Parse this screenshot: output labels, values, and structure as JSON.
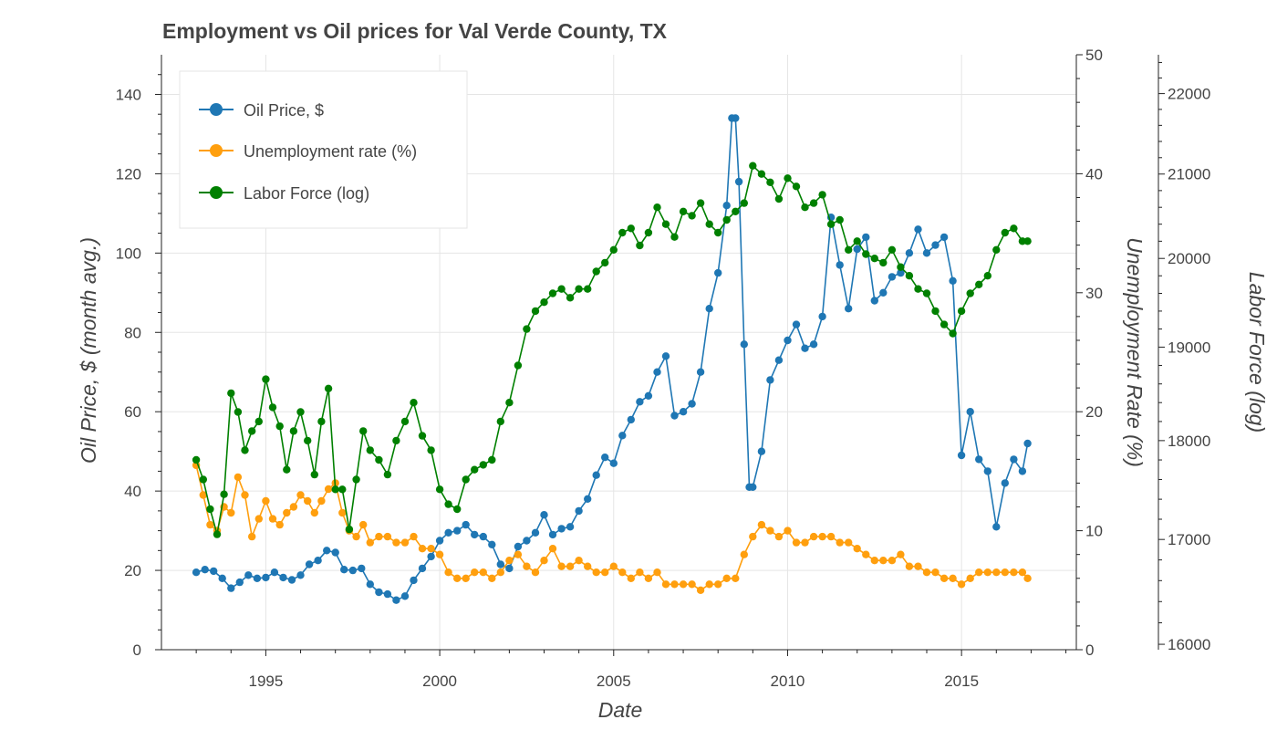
{
  "chart_data": {
    "type": "line",
    "title": "Employment vs Oil prices for Val Verde County, TX",
    "xlabel": "Date",
    "x_ticks": [
      "1995",
      "2000",
      "2005",
      "2010",
      "2015"
    ],
    "xlim": [
      1992.0,
      2018.3
    ],
    "axes": {
      "left": {
        "label": "Oil Price, $ (month avg.)",
        "range": [
          0,
          150
        ],
        "ticks": [
          "0",
          "20",
          "40",
          "60",
          "80",
          "100",
          "120",
          "140"
        ],
        "tick_values": [
          0,
          20,
          40,
          60,
          80,
          100,
          120,
          140
        ]
      },
      "right1": {
        "label": "Unemployment Rate (%)",
        "range": [
          0,
          50
        ],
        "ticks": [
          "0",
          "10",
          "20",
          "30",
          "40",
          "50"
        ],
        "tick_values": [
          0,
          10,
          20,
          30,
          40,
          50
        ]
      },
      "right2": {
        "label": "Labor Force (log)",
        "scale": "log",
        "range": [
          15950,
          22500
        ],
        "ticks": [
          "16000",
          "17000",
          "18000",
          "19000",
          "20000",
          "21000",
          "22000"
        ],
        "tick_values": [
          16000,
          17000,
          18000,
          19000,
          20000,
          21000,
          22000
        ]
      }
    },
    "grid": true,
    "legend_position": "top-left",
    "series": [
      {
        "name": "Oil Price, $",
        "color": "#1f77b4",
        "axis": "left",
        "x": [
          1993.0,
          1993.25,
          1993.5,
          1993.75,
          1994.0,
          1994.25,
          1994.5,
          1994.75,
          1995.0,
          1995.25,
          1995.5,
          1995.75,
          1996.0,
          1996.25,
          1996.5,
          1996.75,
          1997.0,
          1997.25,
          1997.5,
          1997.75,
          1998.0,
          1998.25,
          1998.5,
          1998.75,
          1999.0,
          1999.25,
          1999.5,
          1999.75,
          2000.0,
          2000.25,
          2000.5,
          2000.75,
          2001.0,
          2001.25,
          2001.5,
          2001.75,
          2002.0,
          2002.25,
          2002.5,
          2002.75,
          2003.0,
          2003.25,
          2003.5,
          2003.75,
          2004.0,
          2004.25,
          2004.5,
          2004.75,
          2005.0,
          2005.25,
          2005.5,
          2005.75,
          2006.0,
          2006.25,
          2006.5,
          2006.75,
          2007.0,
          2007.25,
          2007.5,
          2007.75,
          2008.0,
          2008.25,
          2008.4,
          2008.5,
          2008.6,
          2008.75,
          2008.9,
          2009.0,
          2009.25,
          2009.5,
          2009.75,
          2010.0,
          2010.25,
          2010.5,
          2010.75,
          2011.0,
          2011.25,
          2011.5,
          2011.75,
          2012.0,
          2012.25,
          2012.5,
          2012.75,
          2013.0,
          2013.25,
          2013.5,
          2013.75,
          2014.0,
          2014.25,
          2014.5,
          2014.75,
          2015.0,
          2015.25,
          2015.5,
          2015.75,
          2016.0,
          2016.25,
          2016.5,
          2016.75,
          2016.9
        ],
        "values": [
          19.5,
          20.2,
          19.8,
          18.0,
          15.5,
          17.0,
          18.8,
          18.0,
          18.2,
          19.5,
          18.2,
          17.6,
          18.8,
          21.5,
          22.5,
          25.0,
          24.5,
          20.2,
          20.0,
          20.5,
          16.5,
          14.5,
          14.0,
          12.5,
          13.5,
          17.5,
          20.5,
          23.5,
          27.5,
          29.5,
          30.0,
          31.5,
          29.0,
          28.5,
          26.5,
          21.5,
          20.5,
          26.0,
          27.5,
          29.5,
          34.0,
          29.0,
          30.5,
          31.0,
          35.0,
          38.0,
          44.0,
          48.5,
          47.0,
          54.0,
          58.0,
          62.5,
          64.0,
          70.0,
          74.0,
          59.0,
          60.0,
          62.0,
          70.0,
          86.0,
          95.0,
          112.0,
          134.0,
          134.0,
          118.0,
          77.0,
          41.0,
          41.0,
          50.0,
          68.0,
          73.0,
          78.0,
          82.0,
          76.0,
          77.0,
          84.0,
          109.0,
          97.0,
          86.0,
          101.0,
          104.0,
          88.0,
          90.0,
          94.0,
          95.0,
          100.0,
          106.0,
          100.0,
          102.0,
          104.0,
          93.0,
          49.0,
          60.0,
          48.0,
          45.0,
          31.0,
          42.0,
          48.0,
          45.0,
          52.0
        ]
      },
      {
        "name": "Unemployment rate (%)",
        "color": "#ff9f0e",
        "axis": "right1",
        "x": [
          1993.0,
          1993.2,
          1993.4,
          1993.6,
          1993.8,
          1994.0,
          1994.2,
          1994.4,
          1994.6,
          1994.8,
          1995.0,
          1995.2,
          1995.4,
          1995.6,
          1995.8,
          1996.0,
          1996.2,
          1996.4,
          1996.6,
          1996.8,
          1997.0,
          1997.2,
          1997.4,
          1997.6,
          1997.8,
          1998.0,
          1998.25,
          1998.5,
          1998.75,
          1999.0,
          1999.25,
          1999.5,
          1999.75,
          2000.0,
          2000.25,
          2000.5,
          2000.75,
          2001.0,
          2001.25,
          2001.5,
          2001.75,
          2002.0,
          2002.25,
          2002.5,
          2002.75,
          2003.0,
          2003.25,
          2003.5,
          2003.75,
          2004.0,
          2004.25,
          2004.5,
          2004.75,
          2005.0,
          2005.25,
          2005.5,
          2005.75,
          2006.0,
          2006.25,
          2006.5,
          2006.75,
          2007.0,
          2007.25,
          2007.5,
          2007.75,
          2008.0,
          2008.25,
          2008.5,
          2008.75,
          2009.0,
          2009.25,
          2009.5,
          2009.75,
          2010.0,
          2010.25,
          2010.5,
          2010.75,
          2011.0,
          2011.25,
          2011.5,
          2011.75,
          2012.0,
          2012.25,
          2012.5,
          2012.75,
          2013.0,
          2013.25,
          2013.5,
          2013.75,
          2014.0,
          2014.25,
          2014.5,
          2014.75,
          2015.0,
          2015.25,
          2015.5,
          2015.75,
          2016.0,
          2016.25,
          2016.5,
          2016.75,
          2016.9
        ],
        "values": [
          15.5,
          13.0,
          10.5,
          10.0,
          12.0,
          11.5,
          14.5,
          13.0,
          9.5,
          11.0,
          12.5,
          11.0,
          10.5,
          11.5,
          12.0,
          13.0,
          12.5,
          11.5,
          12.5,
          13.5,
          14.0,
          11.5,
          10.0,
          9.5,
          10.5,
          9.0,
          9.5,
          9.5,
          9.0,
          9.0,
          9.5,
          8.5,
          8.5,
          8.0,
          6.5,
          6.0,
          6.0,
          6.5,
          6.5,
          6.0,
          6.5,
          7.5,
          8.0,
          7.0,
          6.5,
          7.5,
          8.5,
          7.0,
          7.0,
          7.5,
          7.0,
          6.5,
          6.5,
          7.0,
          6.5,
          6.0,
          6.5,
          6.0,
          6.5,
          5.5,
          5.5,
          5.5,
          5.5,
          5.0,
          5.5,
          5.5,
          6.0,
          6.0,
          8.0,
          9.5,
          10.5,
          10.0,
          9.5,
          10.0,
          9.0,
          9.0,
          9.5,
          9.5,
          9.5,
          9.0,
          9.0,
          8.5,
          8.0,
          7.5,
          7.5,
          7.5,
          8.0,
          7.0,
          7.0,
          6.5,
          6.5,
          6.0,
          6.0,
          5.5,
          6.0,
          6.5,
          6.5,
          6.5,
          6.5,
          6.5,
          6.5,
          6.0
        ]
      },
      {
        "name": "Labor Force (log)",
        "color": "#008000",
        "axis": "right2",
        "x": [
          1993.0,
          1993.2,
          1993.4,
          1993.6,
          1993.8,
          1994.0,
          1994.2,
          1994.4,
          1994.6,
          1994.8,
          1995.0,
          1995.2,
          1995.4,
          1995.6,
          1995.8,
          1996.0,
          1996.2,
          1996.4,
          1996.6,
          1996.8,
          1997.0,
          1997.2,
          1997.4,
          1997.6,
          1997.8,
          1998.0,
          1998.25,
          1998.5,
          1998.75,
          1999.0,
          1999.25,
          1999.5,
          1999.75,
          2000.0,
          2000.25,
          2000.5,
          2000.75,
          2001.0,
          2001.25,
          2001.5,
          2001.75,
          2002.0,
          2002.25,
          2002.5,
          2002.75,
          2003.0,
          2003.25,
          2003.5,
          2003.75,
          2004.0,
          2004.25,
          2004.5,
          2004.75,
          2005.0,
          2005.25,
          2005.5,
          2005.75,
          2006.0,
          2006.25,
          2006.5,
          2006.75,
          2007.0,
          2007.25,
          2007.5,
          2007.75,
          2008.0,
          2008.25,
          2008.5,
          2008.75,
          2009.0,
          2009.25,
          2009.5,
          2009.75,
          2010.0,
          2010.25,
          2010.5,
          2010.75,
          2011.0,
          2011.25,
          2011.5,
          2011.75,
          2012.0,
          2012.25,
          2012.5,
          2012.75,
          2013.0,
          2013.25,
          2013.5,
          2013.75,
          2014.0,
          2014.25,
          2014.5,
          2014.75,
          2015.0,
          2015.25,
          2015.5,
          2015.75,
          2016.0,
          2016.25,
          2016.5,
          2016.75,
          2016.9
        ],
        "values": [
          17800,
          17600,
          17300,
          17050,
          17450,
          18500,
          18300,
          17900,
          18100,
          18200,
          18650,
          18350,
          18150,
          17700,
          18100,
          18300,
          18000,
          17650,
          18200,
          18550,
          17500,
          17500,
          17100,
          17600,
          18100,
          17900,
          17800,
          17650,
          18000,
          18200,
          18400,
          18050,
          17900,
          17500,
          17350,
          17300,
          17600,
          17700,
          17750,
          17800,
          18200,
          18400,
          18800,
          19200,
          19400,
          19500,
          19600,
          19650,
          19550,
          19650,
          19650,
          19850,
          19950,
          20100,
          20300,
          20350,
          20150,
          20300,
          20600,
          20400,
          20250,
          20550,
          20500,
          20650,
          20400,
          20300,
          20450,
          20550,
          20650,
          21100,
          21000,
          20900,
          20700,
          20950,
          20850,
          20600,
          20650,
          20750,
          20400,
          20450,
          20100,
          20200,
          20050,
          20000,
          19950,
          20100,
          19900,
          19800,
          19650,
          19600,
          19400,
          19250,
          19150,
          19400,
          19600,
          19700,
          19800,
          20100,
          20300,
          20350,
          20200,
          20200
        ]
      }
    ]
  }
}
